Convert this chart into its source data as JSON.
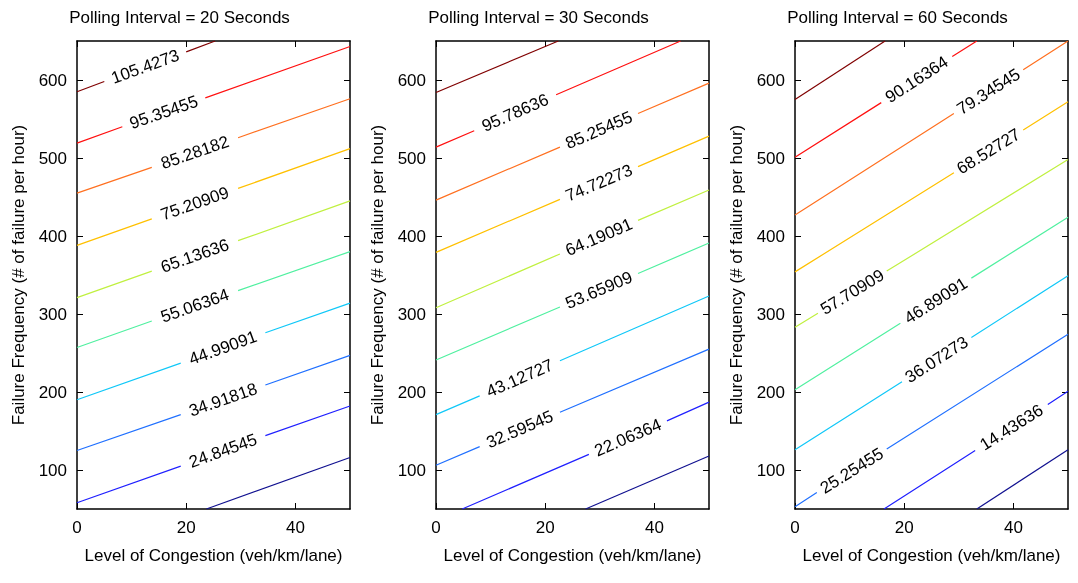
{
  "chart_data": [
    {
      "type": "line",
      "title": "Polling Interval = 20 Seconds",
      "xlabel": "Level of Congestion (veh/km/lane)",
      "ylabel": "Failure Frequency (# of failure per hour)",
      "xlim": [
        0,
        50
      ],
      "ylim": [
        50,
        650
      ],
      "xticks": [
        0,
        20,
        40
      ],
      "yticks": [
        100,
        200,
        300,
        400,
        500,
        600
      ],
      "series": [
        {
          "name": "105.4273",
          "color": "#800000",
          "x": [
            0,
            5,
            12,
            20,
            25.3
          ],
          "values": [
            585,
            598,
            null,
            636,
            650
          ]
        },
        {
          "name": "95.35455",
          "color": "#ff1010",
          "x": [
            0,
            8.3,
            16,
            23.5,
            50
          ],
          "values": [
            519,
            540,
            null,
            577,
            643
          ]
        },
        {
          "name": "85.28182",
          "color": "#ff7020",
          "x": [
            0,
            13.7,
            21,
            29.5,
            50
          ],
          "values": [
            455,
            488,
            null,
            526,
            576
          ]
        },
        {
          "name": "75.20909",
          "color": "#ffc000",
          "x": [
            0,
            13.7,
            21,
            29.5,
            50
          ],
          "values": [
            388,
            422,
            null,
            461,
            512
          ]
        },
        {
          "name": "65.13636",
          "color": "#c0f040",
          "x": [
            0,
            13.7,
            21,
            29.5,
            50
          ],
          "values": [
            321,
            355,
            null,
            394,
            445
          ]
        },
        {
          "name": "55.06364",
          "color": "#50f0a0",
          "x": [
            0,
            13.7,
            21,
            29.5,
            50
          ],
          "values": [
            257,
            291,
            null,
            330,
            380
          ]
        },
        {
          "name": "44.99091",
          "color": "#10c8f8",
          "x": [
            0,
            19,
            27,
            34.5,
            50
          ],
          "values": [
            190,
            237,
            null,
            276,
            314
          ]
        },
        {
          "name": "34.91818",
          "color": "#2070ff",
          "x": [
            0,
            19,
            27,
            34.5,
            50
          ],
          "values": [
            125,
            171,
            null,
            209,
            247
          ]
        },
        {
          "name": "24.84545",
          "color": "#2020ff",
          "x": [
            0,
            19,
            27,
            34.5,
            50
          ],
          "values": [
            58,
            105,
            null,
            144,
            182
          ]
        },
        {
          "color": "#101090",
          "x": [
            23.7,
            50
          ],
          "values": [
            50,
            116
          ]
        }
      ]
    },
    {
      "type": "line",
      "title": "Polling Interval = 30 Seconds",
      "xlabel": "Level of Congestion (veh/km/lane)",
      "ylabel": "Failure Frequency (# of failure per hour)",
      "xlim": [
        0,
        50
      ],
      "ylim": [
        50,
        650
      ],
      "xticks": [
        0,
        20,
        40
      ],
      "yticks": [
        100,
        200,
        300,
        400,
        500,
        600
      ],
      "series": [
        {
          "color": "#800000",
          "x": [
            0,
            22.4
          ],
          "values": [
            584,
            650
          ]
        },
        {
          "name": "95.78636",
          "color": "#ff1010",
          "x": [
            0,
            7,
            14.5,
            22,
            44.8
          ],
          "values": [
            514,
            535,
            null,
            581,
            650
          ]
        },
        {
          "name": "85.25455",
          "color": "#ff7020",
          "x": [
            0,
            22.7,
            30,
            37,
            50
          ],
          "values": [
            446,
            514,
            null,
            557,
            596
          ]
        },
        {
          "name": "74.72273",
          "color": "#ffc000",
          "x": [
            0,
            22.7,
            30,
            37,
            50
          ],
          "values": [
            379,
            447,
            null,
            489,
            528
          ]
        },
        {
          "name": "64.19091",
          "color": "#c0f040",
          "x": [
            0,
            22.7,
            30,
            37,
            50
          ],
          "values": [
            308,
            377,
            null,
            420,
            459
          ]
        },
        {
          "name": "53.65909",
          "color": "#50f0a0",
          "x": [
            0,
            22.7,
            30,
            37,
            50
          ],
          "values": [
            241,
            309,
            null,
            352,
            391
          ]
        },
        {
          "name": "43.12727",
          "color": "#10c8f8",
          "x": [
            0,
            8,
            15,
            22.7,
            50
          ],
          "values": [
            171,
            195,
            null,
            240,
            323
          ]
        },
        {
          "name": "32.59545",
          "color": "#2070ff",
          "x": [
            0,
            8,
            15,
            22.7,
            50
          ],
          "values": [
            106,
            130,
            null,
            174,
            255
          ]
        },
        {
          "name": "22.06364",
          "color": "#2020ff",
          "x": [
            4.8,
            28,
            35,
            42.3,
            50
          ],
          "values": [
            50,
            120,
            null,
            163,
            187
          ]
        },
        {
          "color": "#101090",
          "x": [
            27.4,
            50
          ],
          "values": [
            50,
            118
          ]
        }
      ]
    },
    {
      "type": "line",
      "title": "Polling Interval = 60 Seconds",
      "xlabel": "Level of Congestion (veh/km/lane)",
      "ylabel": "Failure Frequency (# of failure per hour)",
      "xlim": [
        0,
        50
      ],
      "ylim": [
        50,
        650
      ],
      "xticks": [
        0,
        20,
        40
      ],
      "yticks": [
        100,
        200,
        300,
        400,
        500,
        600
      ],
      "series": [
        {
          "color": "#800000",
          "x": [
            0,
            16.5
          ],
          "values": [
            575,
            650
          ]
        },
        {
          "name": "90.16364",
          "color": "#ff1010",
          "x": [
            0,
            15.8,
            22,
            28.8,
            33.3
          ],
          "values": [
            501,
            571,
            null,
            630,
            650
          ]
        },
        {
          "name": "79.34545",
          "color": "#ff7020",
          "x": [
            0,
            29.1,
            35,
            41.8,
            50
          ],
          "values": [
            427,
            557,
            null,
            613,
            650
          ]
        },
        {
          "name": "68.52727",
          "color": "#ffc000",
          "x": [
            0,
            29.1,
            35,
            41.8,
            50
          ],
          "values": [
            354,
            481,
            null,
            536,
            572
          ]
        },
        {
          "name": "57.70909",
          "color": "#c0f040",
          "x": [
            0,
            4.2,
            10,
            16.8,
            50
          ],
          "values": [
            283,
            301,
            null,
            355,
            498
          ]
        },
        {
          "name": "46.89091",
          "color": "#50f0a0",
          "x": [
            0,
            19.3,
            26,
            32.3,
            50
          ],
          "values": [
            203,
            288,
            null,
            346,
            424
          ]
        },
        {
          "name": "36.07273",
          "color": "#10c8f8",
          "x": [
            0,
            19.6,
            26,
            32.3,
            50
          ],
          "values": [
            126,
            213,
            null,
            270,
            349
          ]
        },
        {
          "name": "25.25455",
          "color": "#2070ff",
          "x": [
            0,
            4,
            10,
            16.8,
            50
          ],
          "values": [
            53,
            71,
            null,
            127,
            274
          ]
        },
        {
          "name": "14.43636",
          "color": "#2020ff",
          "x": [
            16.3,
            33,
            40,
            46.3,
            50
          ],
          "values": [
            50,
            125,
            null,
            184,
            201
          ]
        },
        {
          "color": "#101090",
          "x": [
            33.3,
            50
          ],
          "values": [
            50,
            126
          ]
        }
      ]
    }
  ]
}
